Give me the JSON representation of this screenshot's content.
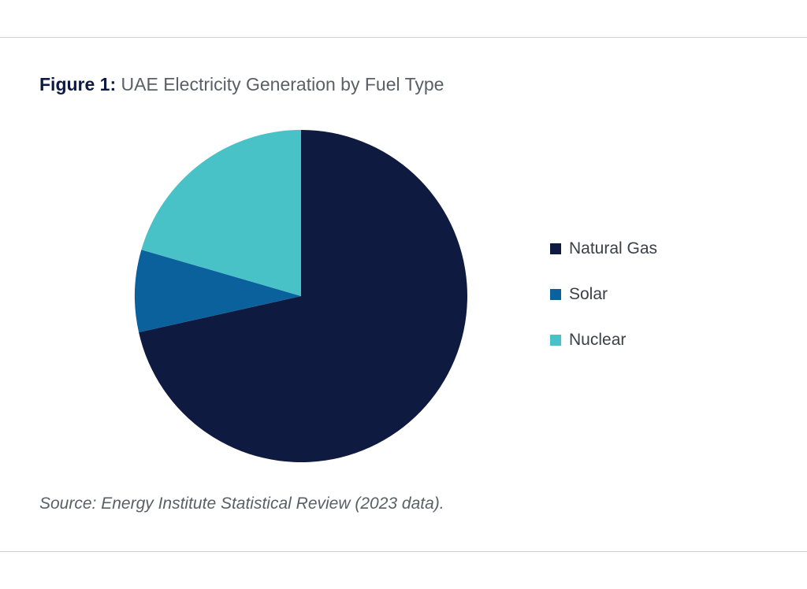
{
  "figure": {
    "label": "Figure 1:",
    "title": "UAE Electricity Generation by Fuel Type"
  },
  "source": "Source: Energy Institute Statistical Review (2023 data).",
  "chart_data": {
    "type": "pie",
    "title": "UAE Electricity Generation by Fuel Type",
    "slices": [
      {
        "label": "Natural Gas",
        "value": 71.5,
        "color": "#0e1a40"
      },
      {
        "label": "Solar",
        "value": 8.0,
        "color": "#0b619c"
      },
      {
        "label": "Nuclear",
        "value": 20.5,
        "color": "#48c2c7"
      }
    ],
    "start_angle_deg": 0,
    "direction": "clockwise",
    "legend_placement": "right"
  }
}
